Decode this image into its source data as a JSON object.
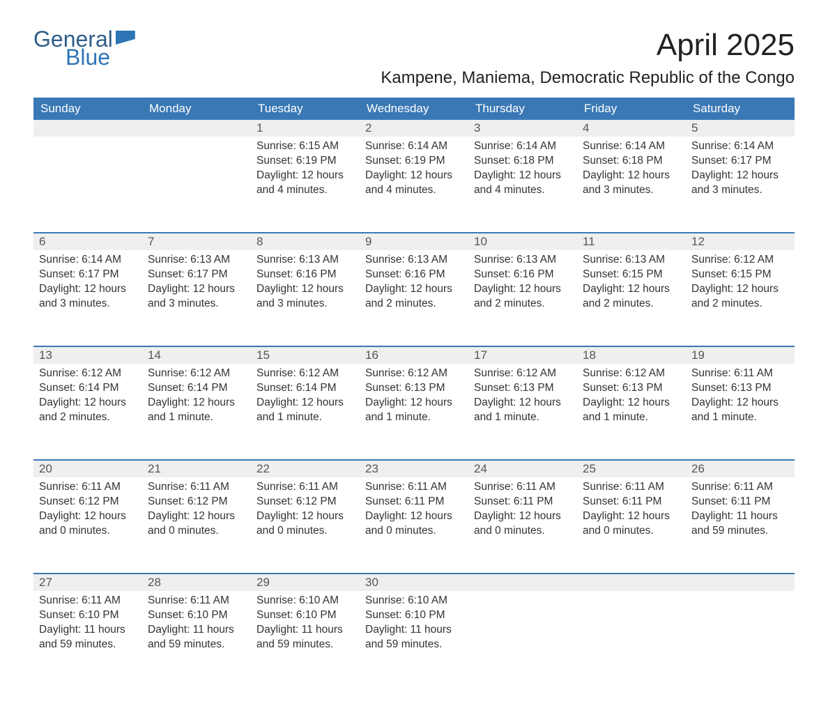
{
  "brand": {
    "word1": "General",
    "word2": "Blue"
  },
  "title": "April 2025",
  "location": "Kampene, Maniema, Democratic Republic of the Congo",
  "colors": {
    "header_bg": "#3a78b5",
    "header_text": "#ffffff",
    "daynum_bg": "#efefef",
    "week_border": "#3a78b5",
    "body_text": "#333333",
    "brand_blue": "#2e74b5"
  },
  "typography": {
    "month_title_fontsize": 44,
    "location_fontsize": 24,
    "header_fontsize": 17,
    "daynum_fontsize": 17,
    "body_fontsize": 15.5
  },
  "weekdays": [
    "Sunday",
    "Monday",
    "Tuesday",
    "Wednesday",
    "Thursday",
    "Friday",
    "Saturday"
  ],
  "weeks": [
    [
      null,
      null,
      {
        "n": "1",
        "sunrise": "Sunrise: 6:15 AM",
        "sunset": "Sunset: 6:19 PM",
        "daylight": "Daylight: 12 hours and 4 minutes."
      },
      {
        "n": "2",
        "sunrise": "Sunrise: 6:14 AM",
        "sunset": "Sunset: 6:19 PM",
        "daylight": "Daylight: 12 hours and 4 minutes."
      },
      {
        "n": "3",
        "sunrise": "Sunrise: 6:14 AM",
        "sunset": "Sunset: 6:18 PM",
        "daylight": "Daylight: 12 hours and 4 minutes."
      },
      {
        "n": "4",
        "sunrise": "Sunrise: 6:14 AM",
        "sunset": "Sunset: 6:18 PM",
        "daylight": "Daylight: 12 hours and 3 minutes."
      },
      {
        "n": "5",
        "sunrise": "Sunrise: 6:14 AM",
        "sunset": "Sunset: 6:17 PM",
        "daylight": "Daylight: 12 hours and 3 minutes."
      }
    ],
    [
      {
        "n": "6",
        "sunrise": "Sunrise: 6:14 AM",
        "sunset": "Sunset: 6:17 PM",
        "daylight": "Daylight: 12 hours and 3 minutes."
      },
      {
        "n": "7",
        "sunrise": "Sunrise: 6:13 AM",
        "sunset": "Sunset: 6:17 PM",
        "daylight": "Daylight: 12 hours and 3 minutes."
      },
      {
        "n": "8",
        "sunrise": "Sunrise: 6:13 AM",
        "sunset": "Sunset: 6:16 PM",
        "daylight": "Daylight: 12 hours and 3 minutes."
      },
      {
        "n": "9",
        "sunrise": "Sunrise: 6:13 AM",
        "sunset": "Sunset: 6:16 PM",
        "daylight": "Daylight: 12 hours and 2 minutes."
      },
      {
        "n": "10",
        "sunrise": "Sunrise: 6:13 AM",
        "sunset": "Sunset: 6:16 PM",
        "daylight": "Daylight: 12 hours and 2 minutes."
      },
      {
        "n": "11",
        "sunrise": "Sunrise: 6:13 AM",
        "sunset": "Sunset: 6:15 PM",
        "daylight": "Daylight: 12 hours and 2 minutes."
      },
      {
        "n": "12",
        "sunrise": "Sunrise: 6:12 AM",
        "sunset": "Sunset: 6:15 PM",
        "daylight": "Daylight: 12 hours and 2 minutes."
      }
    ],
    [
      {
        "n": "13",
        "sunrise": "Sunrise: 6:12 AM",
        "sunset": "Sunset: 6:14 PM",
        "daylight": "Daylight: 12 hours and 2 minutes."
      },
      {
        "n": "14",
        "sunrise": "Sunrise: 6:12 AM",
        "sunset": "Sunset: 6:14 PM",
        "daylight": "Daylight: 12 hours and 1 minute."
      },
      {
        "n": "15",
        "sunrise": "Sunrise: 6:12 AM",
        "sunset": "Sunset: 6:14 PM",
        "daylight": "Daylight: 12 hours and 1 minute."
      },
      {
        "n": "16",
        "sunrise": "Sunrise: 6:12 AM",
        "sunset": "Sunset: 6:13 PM",
        "daylight": "Daylight: 12 hours and 1 minute."
      },
      {
        "n": "17",
        "sunrise": "Sunrise: 6:12 AM",
        "sunset": "Sunset: 6:13 PM",
        "daylight": "Daylight: 12 hours and 1 minute."
      },
      {
        "n": "18",
        "sunrise": "Sunrise: 6:12 AM",
        "sunset": "Sunset: 6:13 PM",
        "daylight": "Daylight: 12 hours and 1 minute."
      },
      {
        "n": "19",
        "sunrise": "Sunrise: 6:11 AM",
        "sunset": "Sunset: 6:13 PM",
        "daylight": "Daylight: 12 hours and 1 minute."
      }
    ],
    [
      {
        "n": "20",
        "sunrise": "Sunrise: 6:11 AM",
        "sunset": "Sunset: 6:12 PM",
        "daylight": "Daylight: 12 hours and 0 minutes."
      },
      {
        "n": "21",
        "sunrise": "Sunrise: 6:11 AM",
        "sunset": "Sunset: 6:12 PM",
        "daylight": "Daylight: 12 hours and 0 minutes."
      },
      {
        "n": "22",
        "sunrise": "Sunrise: 6:11 AM",
        "sunset": "Sunset: 6:12 PM",
        "daylight": "Daylight: 12 hours and 0 minutes."
      },
      {
        "n": "23",
        "sunrise": "Sunrise: 6:11 AM",
        "sunset": "Sunset: 6:11 PM",
        "daylight": "Daylight: 12 hours and 0 minutes."
      },
      {
        "n": "24",
        "sunrise": "Sunrise: 6:11 AM",
        "sunset": "Sunset: 6:11 PM",
        "daylight": "Daylight: 12 hours and 0 minutes."
      },
      {
        "n": "25",
        "sunrise": "Sunrise: 6:11 AM",
        "sunset": "Sunset: 6:11 PM",
        "daylight": "Daylight: 12 hours and 0 minutes."
      },
      {
        "n": "26",
        "sunrise": "Sunrise: 6:11 AM",
        "sunset": "Sunset: 6:11 PM",
        "daylight": "Daylight: 11 hours and 59 minutes."
      }
    ],
    [
      {
        "n": "27",
        "sunrise": "Sunrise: 6:11 AM",
        "sunset": "Sunset: 6:10 PM",
        "daylight": "Daylight: 11 hours and 59 minutes."
      },
      {
        "n": "28",
        "sunrise": "Sunrise: 6:11 AM",
        "sunset": "Sunset: 6:10 PM",
        "daylight": "Daylight: 11 hours and 59 minutes."
      },
      {
        "n": "29",
        "sunrise": "Sunrise: 6:10 AM",
        "sunset": "Sunset: 6:10 PM",
        "daylight": "Daylight: 11 hours and 59 minutes."
      },
      {
        "n": "30",
        "sunrise": "Sunrise: 6:10 AM",
        "sunset": "Sunset: 6:10 PM",
        "daylight": "Daylight: 11 hours and 59 minutes."
      },
      null,
      null,
      null
    ]
  ]
}
